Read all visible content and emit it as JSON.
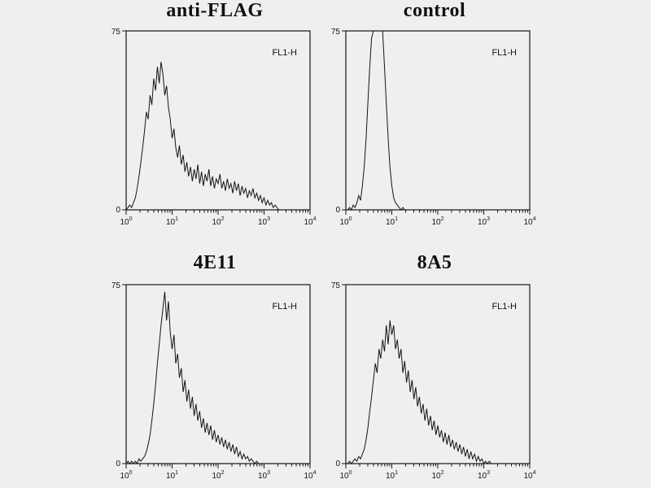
{
  "figure": {
    "background_color": "#efefed",
    "trace_color": "#141414",
    "frame_color": "#141414"
  },
  "chart_data": {
    "type": "line",
    "chart_kind": "flow-cytometry-histogram-overlay",
    "grid": false,
    "legend": "none",
    "panels": [
      {
        "title": "anti-FLAG",
        "inner_label": "FL1-H",
        "x_axis": {
          "scale": "log",
          "min_exp": 0,
          "max_exp": 4,
          "tick_labels": [
            "10^0",
            "10^1",
            "10^2",
            "10^3",
            "10^4"
          ]
        },
        "y_axis": {
          "min": 0,
          "max": 75,
          "tick_labels": [
            "75",
            "0"
          ]
        },
        "series": {
          "x_start": 0,
          "x_step": 0.04,
          "x_unit": "log10(FL1-H)",
          "y_unit": "counts",
          "values": [
            0,
            1,
            2,
            1,
            3,
            5,
            9,
            14,
            20,
            26,
            33,
            41,
            38,
            48,
            44,
            55,
            50,
            60,
            53,
            62,
            57,
            48,
            52,
            43,
            38,
            30,
            34,
            26,
            22,
            27,
            19,
            23,
            16,
            20,
            14,
            18,
            12,
            17,
            13,
            19,
            11,
            16,
            10,
            15,
            12,
            17,
            10,
            14,
            9,
            13,
            11,
            15,
            9,
            12,
            8,
            13,
            9,
            11,
            7,
            12,
            8,
            11,
            6,
            10,
            7,
            9,
            5,
            8,
            6,
            9,
            5,
            7,
            4,
            6,
            3,
            5,
            2,
            4,
            2,
            3,
            1,
            2,
            1,
            0,
            0,
            0
          ]
        }
      },
      {
        "title": "control",
        "inner_label": "FL1-H",
        "x_axis": {
          "scale": "log",
          "min_exp": 0,
          "max_exp": 4,
          "tick_labels": [
            "10^0",
            "10^1",
            "10^2",
            "10^3",
            "10^4"
          ]
        },
        "y_axis": {
          "min": 0,
          "max": 75,
          "tick_labels": [
            "75",
            "0"
          ]
        },
        "series": {
          "x_start": 0,
          "x_step": 0.04,
          "x_unit": "log10(FL1-H)",
          "y_unit": "counts",
          "values": [
            0,
            0,
            1,
            0,
            2,
            1,
            3,
            6,
            4,
            10,
            18,
            30,
            45,
            60,
            72,
            85,
            90,
            88,
            92,
            86,
            78,
            60,
            45,
            30,
            18,
            10,
            5,
            3,
            2,
            1,
            0,
            1,
            0,
            0,
            0,
            0,
            0,
            0,
            0,
            0,
            0,
            0,
            0,
            0,
            0,
            0,
            0,
            0,
            0,
            0,
            0,
            0,
            0,
            0,
            0,
            0,
            0,
            0,
            0,
            0,
            0,
            0,
            0,
            0,
            0,
            0,
            0,
            0,
            0,
            0,
            0,
            0,
            0,
            0,
            0,
            0,
            0,
            0,
            0,
            0,
            0,
            0,
            0,
            0,
            0,
            0
          ]
        }
      },
      {
        "title": "4E11",
        "inner_label": "FL1-H",
        "x_axis": {
          "scale": "log",
          "min_exp": 0,
          "max_exp": 4,
          "tick_labels": [
            "10^0",
            "10^1",
            "10^2",
            "10^3",
            "10^4"
          ]
        },
        "y_axis": {
          "min": 0,
          "max": 75,
          "tick_labels": [
            "75",
            "0"
          ]
        },
        "series": {
          "x_start": 0,
          "x_step": 0.04,
          "x_unit": "log10(FL1-H)",
          "y_unit": "counts",
          "values": [
            0,
            1,
            0,
            1,
            0,
            1,
            0,
            2,
            1,
            2,
            3,
            5,
            8,
            12,
            18,
            25,
            33,
            42,
            50,
            58,
            65,
            72,
            60,
            68,
            55,
            48,
            54,
            42,
            46,
            36,
            40,
            30,
            35,
            26,
            31,
            23,
            28,
            20,
            25,
            18,
            22,
            15,
            19,
            13,
            17,
            12,
            16,
            10,
            14,
            9,
            12,
            8,
            11,
            7,
            10,
            6,
            9,
            5,
            8,
            4,
            7,
            3,
            5,
            2,
            4,
            2,
            3,
            1,
            2,
            1,
            0,
            1,
            0,
            0,
            0,
            0,
            0,
            0,
            0,
            0,
            0,
            0,
            0,
            0,
            0,
            0
          ]
        }
      },
      {
        "title": "8A5",
        "inner_label": "FL1-H",
        "x_axis": {
          "scale": "log",
          "min_exp": 0,
          "max_exp": 4,
          "tick_labels": [
            "10^0",
            "10^1",
            "10^2",
            "10^3",
            "10^4"
          ]
        },
        "y_axis": {
          "min": 0,
          "max": 75,
          "tick_labels": [
            "75",
            "0"
          ]
        },
        "series": {
          "x_start": 0,
          "x_step": 0.04,
          "x_unit": "log10(FL1-H)",
          "y_unit": "counts",
          "values": [
            0,
            0,
            1,
            0,
            1,
            2,
            1,
            3,
            2,
            4,
            6,
            10,
            15,
            22,
            28,
            35,
            42,
            38,
            48,
            44,
            52,
            47,
            58,
            50,
            60,
            54,
            58,
            48,
            52,
            44,
            48,
            38,
            43,
            34,
            39,
            30,
            35,
            27,
            32,
            24,
            28,
            21,
            25,
            18,
            23,
            16,
            20,
            14,
            18,
            12,
            16,
            11,
            14,
            9,
            13,
            8,
            12,
            7,
            10,
            6,
            9,
            5,
            8,
            4,
            7,
            3,
            6,
            2,
            5,
            2,
            4,
            1,
            3,
            1,
            2,
            0,
            1,
            0,
            1,
            0,
            0,
            0,
            0,
            0,
            0,
            0
          ]
        }
      }
    ]
  }
}
